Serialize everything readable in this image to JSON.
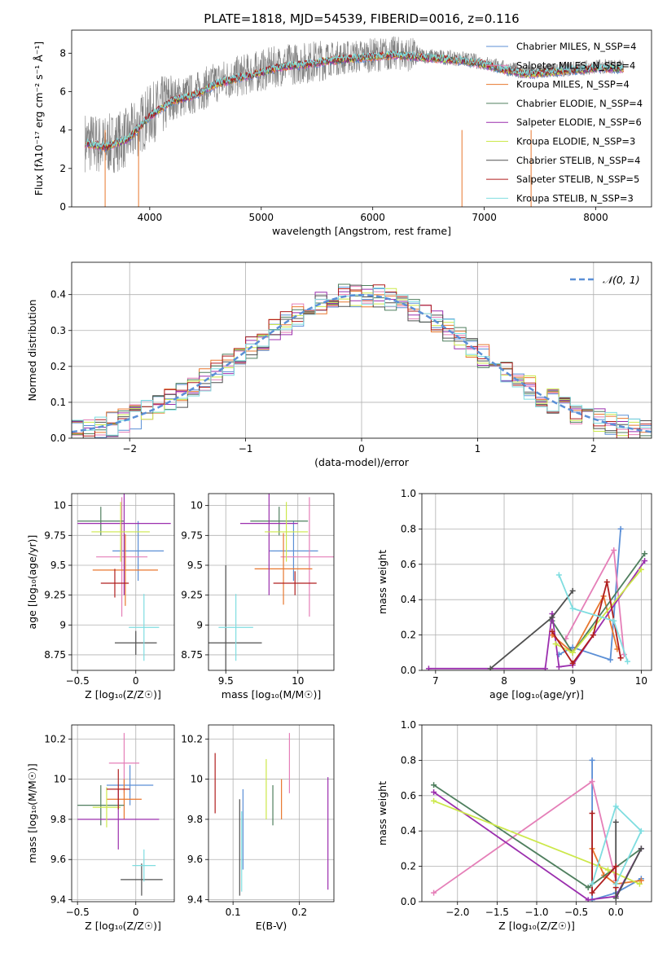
{
  "chart_data": [
    {
      "id": "spectrum",
      "type": "line",
      "title": "PLATE=1818, MJD=54539, FIBERID=0016, z=0.116",
      "xlabel": "wavelength [Angstrom, rest frame]",
      "ylabel": "Flux [fλ10⁻¹⁷ erg cm⁻² s⁻¹ Å⁻¹]",
      "xlim": [
        3300,
        8500
      ],
      "ylim": [
        0,
        9.2
      ],
      "xticks": [
        4000,
        5000,
        6000,
        7000,
        8000
      ],
      "yticks": [
        0,
        2,
        4,
        6,
        8
      ],
      "grid": false,
      "legend_position": "top-right",
      "data_curve": {
        "name": "data",
        "color": "#808080",
        "x": [
          3420,
          3600,
          3800,
          4000,
          4200,
          4400,
          4600,
          4800,
          5000,
          5200,
          5400,
          5600,
          5800,
          6000,
          6200,
          6400,
          6600,
          6800,
          7000,
          7200,
          7400,
          7600,
          7800,
          8000,
          8250
        ],
        "y": [
          3.4,
          3.2,
          3.6,
          4.8,
          5.6,
          5.9,
          6.5,
          6.8,
          7.1,
          7.4,
          7.5,
          7.7,
          7.8,
          7.9,
          8.0,
          7.9,
          7.8,
          7.7,
          7.5,
          7.2,
          7.0,
          7.1,
          7.2,
          7.3,
          7.3
        ]
      },
      "model_curve": {
        "x": [
          3420,
          3600,
          3800,
          4000,
          4200,
          4400,
          4600,
          4800,
          5000,
          5200,
          5400,
          5600,
          5800,
          6000,
          6200,
          6400,
          6600,
          6800,
          7000,
          7200,
          7400,
          7600,
          7800,
          8000,
          8250
        ],
        "y": [
          3.3,
          3.1,
          3.5,
          4.7,
          5.5,
          5.8,
          6.4,
          6.7,
          7.0,
          7.3,
          7.4,
          7.6,
          7.7,
          7.8,
          7.9,
          7.8,
          7.7,
          7.6,
          7.4,
          7.1,
          6.9,
          7.0,
          7.1,
          7.2,
          7.2
        ]
      },
      "series": [
        {
          "name": "Chabrier MILES, N_SSP=4",
          "color": "#5b8fd6"
        },
        {
          "name": "Salpeter MILES, N_SSP=4",
          "color": "#e57fb8"
        },
        {
          "name": "Kroupa MILES, N_SSP=4",
          "color": "#e8772e"
        },
        {
          "name": "Chabrier ELODIE, N_SSP=4",
          "color": "#4f7f5e"
        },
        {
          "name": "Salpeter ELODIE, N_SSP=6",
          "color": "#9b2fae"
        },
        {
          "name": "Kroupa ELODIE, N_SSP=3",
          "color": "#cce84a"
        },
        {
          "name": "Chabrier STELIB, N_SSP=4",
          "color": "#505050"
        },
        {
          "name": "Salpeter STELIB, N_SSP=5",
          "color": "#b01e1e"
        },
        {
          "name": "Kroupa STELIB, N_SSP=3",
          "color": "#7fdde0"
        }
      ]
    },
    {
      "id": "residuals",
      "type": "line",
      "xlabel": "(data-model)/error",
      "ylabel": "Normed distribution",
      "xlim": [
        -2.5,
        2.5
      ],
      "ylim": [
        0,
        0.49
      ],
      "xticks": [
        -2,
        -1,
        0,
        1,
        2
      ],
      "yticks": [
        0.0,
        0.1,
        0.2,
        0.3,
        0.4
      ],
      "grid": true,
      "legend_position": "top-right",
      "reference": {
        "name": "𝒩(0, 1)",
        "color": "#5b8fd6",
        "mean": 0,
        "sigma": 1
      },
      "histograms": [
        {
          "color": "#5b8fd6",
          "seed": 1
        },
        {
          "color": "#e57fb8",
          "seed": 2
        },
        {
          "color": "#e8772e",
          "seed": 3
        },
        {
          "color": "#4f7f5e",
          "seed": 4
        },
        {
          "color": "#9b2fae",
          "seed": 5
        },
        {
          "color": "#cce84a",
          "seed": 6
        },
        {
          "color": "#505050",
          "seed": 7
        },
        {
          "color": "#b01e1e",
          "seed": 8
        },
        {
          "color": "#7fdde0",
          "seed": 9
        }
      ]
    },
    {
      "id": "age_vs_Z",
      "type": "scatter",
      "xlabel": "Z [log₁₀(Z/Z☉)]",
      "ylabel": "age  [log₁₀(age/yr)]",
      "xlim": [
        -0.55,
        0.33
      ],
      "ylim": [
        8.62,
        10.1
      ],
      "xticks": [
        -0.5,
        0.0
      ],
      "yticks": [
        8.75,
        9.0,
        9.25,
        9.5,
        9.75,
        10.0
      ],
      "grid": true,
      "points": [
        {
          "color": "#5b8fd6",
          "x": 0.02,
          "xerr": 0.22,
          "y": 9.62,
          "yerr": 0.25
        },
        {
          "color": "#e57fb8",
          "x": -0.12,
          "xerr": 0.22,
          "y": 9.57,
          "yerr": 0.5
        },
        {
          "color": "#e8772e",
          "x": -0.09,
          "xerr": 0.28,
          "y": 9.46,
          "yerr": 0.3
        },
        {
          "color": "#4f7f5e",
          "x": -0.3,
          "xerr": 0.2,
          "y": 9.87,
          "yerr": 0.12
        },
        {
          "color": "#9b2fae",
          "x": -0.1,
          "xerr": 0.4,
          "y": 9.85,
          "yerr": 0.6
        },
        {
          "color": "#cce84a",
          "x": -0.13,
          "xerr": 0.25,
          "y": 9.78,
          "yerr": 0.25
        },
        {
          "color": "#505050",
          "x": 0.0,
          "xerr": 0.18,
          "y": 8.85,
          "yerr": 0.1
        },
        {
          "color": "#b01e1e",
          "x": -0.18,
          "xerr": 0.12,
          "y": 9.35,
          "yerr": 0.12
        },
        {
          "color": "#7fdde0",
          "x": 0.07,
          "xerr": 0.13,
          "y": 8.98,
          "yerr": 0.28
        }
      ]
    },
    {
      "id": "age_vs_mass",
      "type": "scatter",
      "xlabel": "mass [log₁₀(M/M☉)]",
      "ylabel": "",
      "xlim": [
        9.38,
        10.25
      ],
      "ylim": [
        8.62,
        10.1
      ],
      "xticks": [
        9.5,
        10.0
      ],
      "yticks": [
        8.75,
        9.0,
        9.25,
        9.5,
        9.75,
        10.0
      ],
      "grid": true,
      "points": [
        {
          "color": "#5b8fd6",
          "x": 9.97,
          "xerr": 0.17,
          "y": 9.62,
          "yerr": 0.25
        },
        {
          "color": "#e57fb8",
          "x": 10.08,
          "xerr": 0.2,
          "y": 9.57,
          "yerr": 0.5
        },
        {
          "color": "#e8772e",
          "x": 9.9,
          "xerr": 0.2,
          "y": 9.47,
          "yerr": 0.3
        },
        {
          "color": "#4f7f5e",
          "x": 9.87,
          "xerr": 0.2,
          "y": 9.87,
          "yerr": 0.12
        },
        {
          "color": "#9b2fae",
          "x": 9.8,
          "xerr": 0.2,
          "y": 9.85,
          "yerr": 0.6
        },
        {
          "color": "#cce84a",
          "x": 9.92,
          "xerr": 0.15,
          "y": 9.78,
          "yerr": 0.25
        },
        {
          "color": "#505050",
          "x": 9.5,
          "xerr": 0.25,
          "y": 8.85,
          "yerr": 0.65
        },
        {
          "color": "#b01e1e",
          "x": 9.98,
          "xerr": 0.15,
          "y": 9.35,
          "yerr": 0.1
        },
        {
          "color": "#7fdde0",
          "x": 9.57,
          "xerr": 0.12,
          "y": 8.98,
          "yerr": 0.28
        }
      ]
    },
    {
      "id": "weight_vs_age",
      "type": "line",
      "xlabel": "age  [log₁₀(age/yr)]",
      "ylabel": "mass weight",
      "xlim": [
        6.8,
        10.15
      ],
      "ylim": [
        0,
        1.0
      ],
      "xticks": [
        7,
        8,
        9,
        10
      ],
      "yticks": [
        0.0,
        0.2,
        0.4,
        0.6,
        0.8,
        1.0
      ],
      "grid": true,
      "series": [
        {
          "color": "#5b8fd6",
          "x": [
            8.8,
            9.0,
            9.55,
            9.7
          ],
          "y": [
            0.09,
            0.13,
            0.06,
            0.8
          ]
        },
        {
          "color": "#e57fb8",
          "x": [
            8.9,
            9.6,
            9.75
          ],
          "y": [
            0.18,
            0.68,
            0.09
          ]
        },
        {
          "color": "#e8772e",
          "x": [
            8.7,
            9.0,
            9.45,
            9.65
          ],
          "y": [
            0.2,
            0.1,
            0.42,
            0.12
          ]
        },
        {
          "color": "#4f7f5e",
          "x": [
            8.7,
            9.0,
            10.05
          ],
          "y": [
            0.28,
            0.1,
            0.66
          ]
        },
        {
          "color": "#9b2fae",
          "x": [
            6.9,
            8.6,
            8.7,
            8.8,
            9.0,
            10.05
          ],
          "y": [
            0.01,
            0.01,
            0.32,
            0.02,
            0.03,
            0.62
          ]
        },
        {
          "color": "#cce84a",
          "x": [
            8.75,
            9.0,
            10.0
          ],
          "y": [
            0.15,
            0.1,
            0.57
          ]
        },
        {
          "color": "#505050",
          "x": [
            7.8,
            8.7,
            9.0
          ],
          "y": [
            0.01,
            0.3,
            0.45
          ]
        },
        {
          "color": "#b01e1e",
          "x": [
            8.7,
            9.0,
            9.3,
            9.5,
            9.7
          ],
          "y": [
            0.22,
            0.04,
            0.2,
            0.5,
            0.07
          ]
        },
        {
          "color": "#7fdde0",
          "x": [
            8.8,
            9.0,
            9.6,
            9.8
          ],
          "y": [
            0.54,
            0.35,
            0.28,
            0.05
          ]
        }
      ]
    },
    {
      "id": "mass_vs_Z",
      "type": "scatter",
      "xlabel": "Z [log₁₀(Z/Z☉)]",
      "ylabel": "mass [log₁₀(M/M☉)]",
      "xlim": [
        -0.55,
        0.33
      ],
      "ylim": [
        9.39,
        10.27
      ],
      "xticks": [
        -0.5,
        0.0
      ],
      "yticks": [
        9.4,
        9.6,
        9.8,
        10.0,
        10.2
      ],
      "grid": true,
      "points": [
        {
          "color": "#5b8fd6",
          "x": -0.05,
          "xerr": 0.2,
          "y": 9.97,
          "yerr": 0.1
        },
        {
          "color": "#e57fb8",
          "x": -0.1,
          "xerr": 0.13,
          "y": 10.08,
          "yerr": 0.15
        },
        {
          "color": "#e8772e",
          "x": -0.1,
          "xerr": 0.15,
          "y": 9.9,
          "yerr": 0.1
        },
        {
          "color": "#4f7f5e",
          "x": -0.3,
          "xerr": 0.2,
          "y": 9.87,
          "yerr": 0.1
        },
        {
          "color": "#9b2fae",
          "x": -0.15,
          "xerr": 0.35,
          "y": 9.8,
          "yerr": 0.15
        },
        {
          "color": "#cce84a",
          "x": -0.25,
          "xerr": 0.12,
          "y": 9.86,
          "yerr": 0.1
        },
        {
          "color": "#505050",
          "x": 0.05,
          "xerr": 0.18,
          "y": 9.5,
          "yerr": 0.08
        },
        {
          "color": "#b01e1e",
          "x": -0.15,
          "xerr": 0.1,
          "y": 9.95,
          "yerr": 0.1
        },
        {
          "color": "#7fdde0",
          "x": 0.07,
          "xerr": 0.1,
          "y": 9.57,
          "yerr": 0.08
        }
      ]
    },
    {
      "id": "mass_vs_EBV",
      "type": "scatter",
      "xlabel": "E(B-V)",
      "ylabel": "",
      "xlim": [
        0.063,
        0.252
      ],
      "ylim": [
        9.39,
        10.27
      ],
      "xticks": [
        0.1,
        0.2
      ],
      "yticks": [
        9.4,
        9.6,
        9.8,
        10.0,
        10.2
      ],
      "grid": true,
      "points": [
        {
          "color": "#5b8fd6",
          "x": 0.115,
          "y": 9.75,
          "yerr": 0.2
        },
        {
          "color": "#e57fb8",
          "x": 0.185,
          "y": 10.08,
          "yerr": 0.15
        },
        {
          "color": "#e8772e",
          "x": 0.173,
          "y": 9.9,
          "yerr": 0.1
        },
        {
          "color": "#4f7f5e",
          "x": 0.16,
          "y": 9.87,
          "yerr": 0.1
        },
        {
          "color": "#9b2fae",
          "x": 0.243,
          "y": 9.73,
          "yerr": 0.28
        },
        {
          "color": "#cce84a",
          "x": 0.15,
          "y": 9.95,
          "yerr": 0.15
        },
        {
          "color": "#505050",
          "x": 0.11,
          "y": 9.66,
          "yerr": 0.24
        },
        {
          "color": "#b01e1e",
          "x": 0.073,
          "y": 9.98,
          "yerr": 0.15
        },
        {
          "color": "#7fdde0",
          "x": 0.113,
          "y": 9.64,
          "yerr": 0.2
        }
      ]
    },
    {
      "id": "weight_vs_Z",
      "type": "line",
      "xlabel": "Z [log₁₀(Z/Z☉)]",
      "ylabel": "mass weight",
      "xlim": [
        -2.45,
        0.45
      ],
      "ylim": [
        0,
        1.0
      ],
      "xticks": [
        -2.0,
        -1.5,
        -1.0,
        -0.5,
        0.0
      ],
      "yticks": [
        0.0,
        0.2,
        0.4,
        0.6,
        0.8,
        1.0
      ],
      "grid": true,
      "series": [
        {
          "color": "#5b8fd6",
          "x": [
            -0.3,
            -0.3,
            0.0,
            0.32
          ],
          "y": [
            0.8,
            0.01,
            0.05,
            0.13
          ]
        },
        {
          "color": "#e57fb8",
          "x": [
            -2.3,
            -0.3,
            0.0
          ],
          "y": [
            0.05,
            0.68,
            0.12
          ]
        },
        {
          "color": "#e8772e",
          "x": [
            -0.3,
            -0.15,
            0.0,
            0.32
          ],
          "y": [
            0.3,
            0.15,
            0.1,
            0.12
          ]
        },
        {
          "color": "#4f7f5e",
          "x": [
            -2.3,
            -0.35,
            0.32
          ],
          "y": [
            0.66,
            0.08,
            0.3
          ]
        },
        {
          "color": "#9b2fae",
          "x": [
            -2.3,
            -0.35,
            0.0,
            0.32
          ],
          "y": [
            0.62,
            0.01,
            0.03,
            0.3
          ]
        },
        {
          "color": "#cce84a",
          "x": [
            -2.3,
            -0.1,
            0.3
          ],
          "y": [
            0.57,
            0.18,
            0.1
          ]
        },
        {
          "color": "#505050",
          "x": [
            0.0,
            0.0,
            0.32
          ],
          "y": [
            0.45,
            0.02,
            0.3
          ]
        },
        {
          "color": "#b01e1e",
          "x": [
            -0.3,
            -0.3,
            0.0,
            0.0
          ],
          "y": [
            0.5,
            0.05,
            0.2,
            0.08
          ]
        },
        {
          "color": "#7fdde0",
          "x": [
            -0.3,
            0.0,
            0.32,
            0.0
          ],
          "y": [
            0.1,
            0.54,
            0.4,
            0.1
          ]
        }
      ]
    }
  ]
}
